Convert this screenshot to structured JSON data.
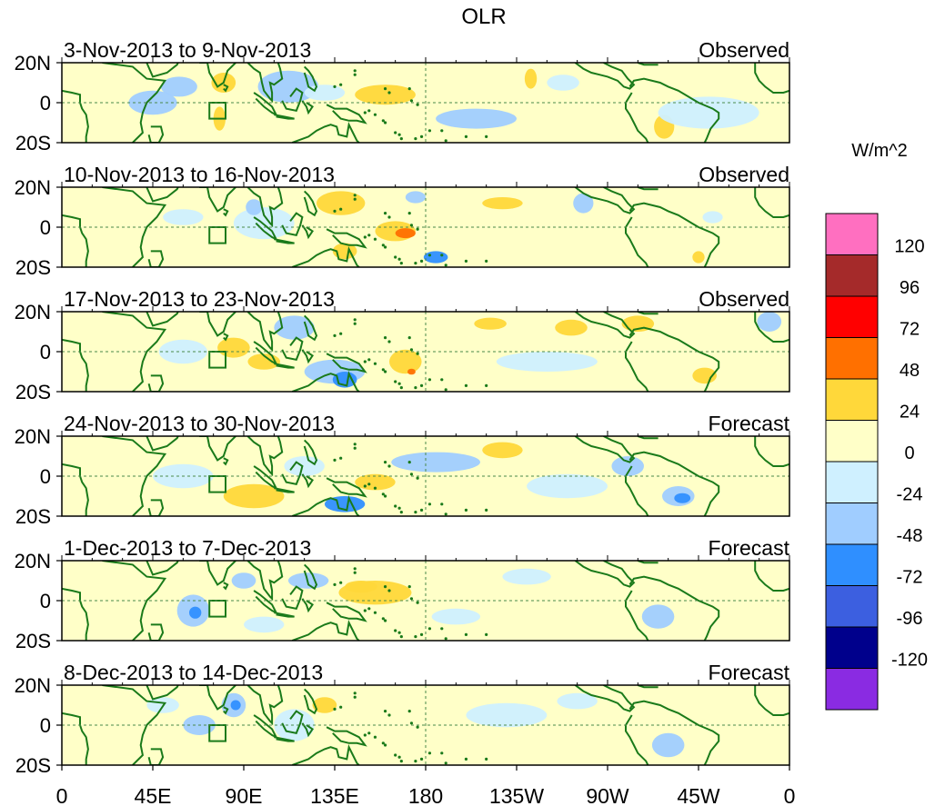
{
  "chart_data": {
    "type": "heatmap",
    "title": "OLR",
    "units_label": "W/m^2",
    "y_tick_labels": [
      "20N",
      "0",
      "20S"
    ],
    "x_tick_labels": [
      "0",
      "45E",
      "90E",
      "135E",
      "180",
      "135W",
      "90W",
      "45W",
      "0"
    ],
    "x_range_deg_east": [
      0,
      360
    ],
    "y_range_deg": [
      -20,
      20
    ],
    "colorbar": {
      "levels": [
        "120",
        "96",
        "72",
        "48",
        "24",
        "0",
        "-24",
        "-48",
        "-72",
        "-96",
        "-120"
      ],
      "colors": [
        "#ff6fc0",
        "#a52a2a",
        "#ff0000",
        "#ff7000",
        "#ffd83a",
        "#ffffc8",
        "#cff0ff",
        "#a0cdff",
        "#2f8fff",
        "#3c5fe0",
        "#00008c",
        "#8a2be2"
      ]
    },
    "panels": [
      {
        "period": "3-Nov-2013 to 9-Nov-2013",
        "status": "Observed",
        "anomalies": [
          {
            "lon": 58,
            "lat": 8,
            "rlon": 9,
            "rlat": 5,
            "v": -40
          },
          {
            "lon": 45,
            "lat": 0,
            "rlon": 12,
            "rlat": 6,
            "v": -30
          },
          {
            "lon": 80,
            "lat": 10,
            "rlon": 6,
            "rlat": 5,
            "v": 30
          },
          {
            "lon": 78,
            "lat": -8,
            "rlon": 3,
            "rlat": 6,
            "v": 30
          },
          {
            "lon": 112,
            "lat": 8,
            "rlon": 15,
            "rlat": 8,
            "v": -30
          },
          {
            "lon": 130,
            "lat": 5,
            "rlon": 10,
            "rlat": 4,
            "v": -20
          },
          {
            "lon": 160,
            "lat": 4,
            "rlon": 15,
            "rlat": 5,
            "v": 30
          },
          {
            "lon": 205,
            "lat": -8,
            "rlon": 20,
            "rlat": 5,
            "v": -30
          },
          {
            "lon": 232,
            "lat": 12,
            "rlon": 3,
            "rlat": 5,
            "v": 30
          },
          {
            "lon": 248,
            "lat": 10,
            "rlon": 8,
            "rlat": 4,
            "v": -20
          },
          {
            "lon": 298,
            "lat": -12,
            "rlon": 5,
            "rlat": 6,
            "v": 30
          },
          {
            "lon": 320,
            "lat": -5,
            "rlon": 25,
            "rlat": 8,
            "v": -15
          }
        ]
      },
      {
        "period": "10-Nov-2013 to 16-Nov-2013",
        "status": "Observed",
        "anomalies": [
          {
            "lon": 138,
            "lat": 12,
            "rlon": 12,
            "rlat": 6,
            "v": 30
          },
          {
            "lon": 165,
            "lat": -2,
            "rlon": 10,
            "rlat": 5,
            "v": 45
          },
          {
            "lon": 170,
            "lat": -3,
            "rlon": 5,
            "rlat": 2.5,
            "v": 60
          },
          {
            "lon": 175,
            "lat": 15,
            "rlon": 5,
            "rlat": 3,
            "v": -40
          },
          {
            "lon": 140,
            "lat": -12,
            "rlon": 6,
            "rlat": 4,
            "v": 30
          },
          {
            "lon": 185,
            "lat": -15,
            "rlon": 6,
            "rlat": 3,
            "v": -50
          },
          {
            "lon": 218,
            "lat": 12,
            "rlon": 10,
            "rlat": 3,
            "v": 30
          },
          {
            "lon": 258,
            "lat": 12,
            "rlon": 5,
            "rlat": 5,
            "v": -30
          },
          {
            "lon": 100,
            "lat": 2,
            "rlon": 15,
            "rlat": 8,
            "v": -20
          },
          {
            "lon": 60,
            "lat": 5,
            "rlon": 10,
            "rlat": 4,
            "v": -20
          },
          {
            "lon": 95,
            "lat": 10,
            "rlon": 4,
            "rlat": 4,
            "v": -40
          },
          {
            "lon": 315,
            "lat": -15,
            "rlon": 3,
            "rlat": 3,
            "v": 30
          },
          {
            "lon": 322,
            "lat": 5,
            "rlon": 5,
            "rlat": 3,
            "v": -20
          }
        ]
      },
      {
        "period": "17-Nov-2013 to 23-Nov-2013",
        "status": "Observed",
        "anomalies": [
          {
            "lon": 115,
            "lat": 12,
            "rlon": 10,
            "rlat": 6,
            "v": -30
          },
          {
            "lon": 135,
            "lat": -10,
            "rlon": 15,
            "rlat": 6,
            "v": -40
          },
          {
            "lon": 140,
            "lat": -14,
            "rlon": 6,
            "rlat": 4,
            "v": -60
          },
          {
            "lon": 85,
            "lat": 2,
            "rlon": 8,
            "rlat": 5,
            "v": 30
          },
          {
            "lon": 100,
            "lat": -5,
            "rlon": 8,
            "rlat": 4,
            "v": 30
          },
          {
            "lon": 170,
            "lat": -5,
            "rlon": 8,
            "rlat": 6,
            "v": 30
          },
          {
            "lon": 173,
            "lat": -10,
            "rlon": 2,
            "rlat": 1.5,
            "v": 60
          },
          {
            "lon": 170,
            "lat": 12,
            "rlon": 12,
            "rlat": 4,
            "v": 20
          },
          {
            "lon": 212,
            "lat": 14,
            "rlon": 8,
            "rlat": 3,
            "v": 30
          },
          {
            "lon": 252,
            "lat": 12,
            "rlon": 8,
            "rlat": 4,
            "v": 30
          },
          {
            "lon": 285,
            "lat": 14,
            "rlon": 8,
            "rlat": 4,
            "v": 30
          },
          {
            "lon": 350,
            "lat": 15,
            "rlon": 6,
            "rlat": 5,
            "v": -40
          },
          {
            "lon": 318,
            "lat": -12,
            "rlon": 6,
            "rlat": 4,
            "v": 30
          },
          {
            "lon": 60,
            "lat": 0,
            "rlon": 12,
            "rlat": 6,
            "v": -20
          },
          {
            "lon": 240,
            "lat": -5,
            "rlon": 25,
            "rlat": 5,
            "v": -15
          }
        ]
      },
      {
        "period": "24-Nov-2013 to 30-Nov-2013",
        "status": "Forecast",
        "anomalies": [
          {
            "lon": 185,
            "lat": 7,
            "rlon": 22,
            "rlat": 5,
            "v": -30
          },
          {
            "lon": 218,
            "lat": 13,
            "rlon": 10,
            "rlat": 4,
            "v": 30
          },
          {
            "lon": 95,
            "lat": -10,
            "rlon": 15,
            "rlat": 6,
            "v": 30
          },
          {
            "lon": 140,
            "lat": -14,
            "rlon": 10,
            "rlat": 4,
            "v": -50
          },
          {
            "lon": 155,
            "lat": -3,
            "rlon": 10,
            "rlat": 4,
            "v": 25
          },
          {
            "lon": 120,
            "lat": 5,
            "rlon": 10,
            "rlat": 5,
            "v": -20
          },
          {
            "lon": 305,
            "lat": -10,
            "rlon": 8,
            "rlat": 5,
            "v": -40
          },
          {
            "lon": 307,
            "lat": -11,
            "rlon": 4,
            "rlat": 2.5,
            "v": -60
          },
          {
            "lon": 280,
            "lat": 5,
            "rlon": 8,
            "rlat": 5,
            "v": -25
          },
          {
            "lon": 60,
            "lat": 0,
            "rlon": 15,
            "rlat": 6,
            "v": -20
          },
          {
            "lon": 250,
            "lat": -5,
            "rlon": 20,
            "rlat": 6,
            "v": -15
          }
        ]
      },
      {
        "period": "1-Dec-2013 to 7-Dec-2013",
        "status": "Forecast",
        "anomalies": [
          {
            "lon": 65,
            "lat": -5,
            "rlon": 8,
            "rlat": 8,
            "v": -40
          },
          {
            "lon": 66,
            "lat": -6,
            "rlon": 3,
            "rlat": 3,
            "v": -60
          },
          {
            "lon": 90,
            "lat": 10,
            "rlon": 6,
            "rlat": 4,
            "v": -30
          },
          {
            "lon": 155,
            "lat": 4,
            "rlon": 18,
            "rlat": 6,
            "v": 25
          },
          {
            "lon": 148,
            "lat": 7,
            "rlon": 8,
            "rlat": 3,
            "v": 35
          },
          {
            "lon": 122,
            "lat": 10,
            "rlon": 10,
            "rlat": 4,
            "v": -25
          },
          {
            "lon": 295,
            "lat": -8,
            "rlon": 8,
            "rlat": 6,
            "v": -30
          },
          {
            "lon": 230,
            "lat": 12,
            "rlon": 12,
            "rlat": 4,
            "v": -20
          },
          {
            "lon": 195,
            "lat": -8,
            "rlon": 12,
            "rlat": 4,
            "v": -20
          },
          {
            "lon": 100,
            "lat": -12,
            "rlon": 10,
            "rlat": 4,
            "v": -20
          }
        ]
      },
      {
        "period": "8-Dec-2013 to 14-Dec-2013",
        "status": "Forecast",
        "anomalies": [
          {
            "lon": 85,
            "lat": 10,
            "rlon": 6,
            "rlat": 6,
            "v": -40
          },
          {
            "lon": 86,
            "lat": 10,
            "rlon": 2.5,
            "rlat": 2.5,
            "v": -60
          },
          {
            "lon": 68,
            "lat": 0,
            "rlon": 8,
            "rlat": 5,
            "v": -30
          },
          {
            "lon": 130,
            "lat": 10,
            "rlon": 6,
            "rlat": 4,
            "v": 35
          },
          {
            "lon": 115,
            "lat": 0,
            "rlon": 10,
            "rlat": 8,
            "v": -20
          },
          {
            "lon": 220,
            "lat": 5,
            "rlon": 20,
            "rlat": 6,
            "v": -15
          },
          {
            "lon": 300,
            "lat": -10,
            "rlon": 8,
            "rlat": 6,
            "v": -25
          },
          {
            "lon": 255,
            "lat": 12,
            "rlon": 10,
            "rlat": 4,
            "v": -20
          },
          {
            "lon": 50,
            "lat": 10,
            "rlon": 8,
            "rlat": 4,
            "v": -20
          }
        ]
      }
    ]
  }
}
